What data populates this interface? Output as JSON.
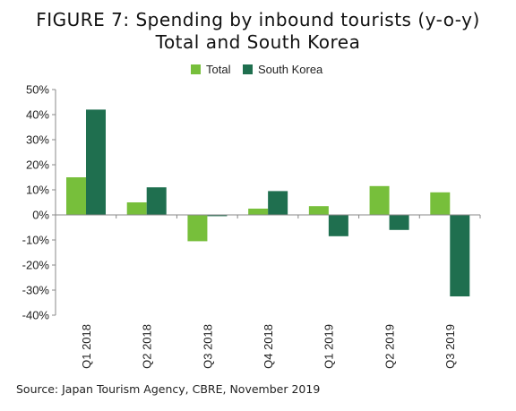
{
  "figure": {
    "title_line1": "FIGURE 7: Spending by inbound tourists (y-o-y)",
    "title_line2": "Total and South Korea",
    "source": "Source: Japan Tourism Agency, CBRE, November 2019"
  },
  "chart_data": {
    "type": "bar",
    "title": "FIGURE 7: Spending by inbound tourists (y-o-y) Total and South Korea",
    "categories": [
      "Q1 2018",
      "Q2 2018",
      "Q3 2018",
      "Q4 2018",
      "Q1 2019",
      "Q2 2019",
      "Q3 2019"
    ],
    "series": [
      {
        "name": "Total",
        "color": "#77bf3b",
        "values": [
          15,
          5,
          -10.5,
          2.5,
          3.5,
          11.5,
          9
        ]
      },
      {
        "name": "South Korea",
        "color": "#1f6f4f",
        "values": [
          42,
          11,
          -0.5,
          9.5,
          -8.5,
          -6,
          -32.5
        ]
      }
    ],
    "ylim": [
      -40,
      50
    ],
    "yticks": [
      50,
      40,
      30,
      20,
      10,
      0,
      -10,
      -20,
      -30,
      -40
    ],
    "ytick_labels": [
      "50%",
      "40%",
      "30%",
      "20%",
      "10%",
      "0%",
      "-10%",
      "-20%",
      "-30%",
      "-40%"
    ],
    "legend_position": "top-center",
    "grid": false
  }
}
